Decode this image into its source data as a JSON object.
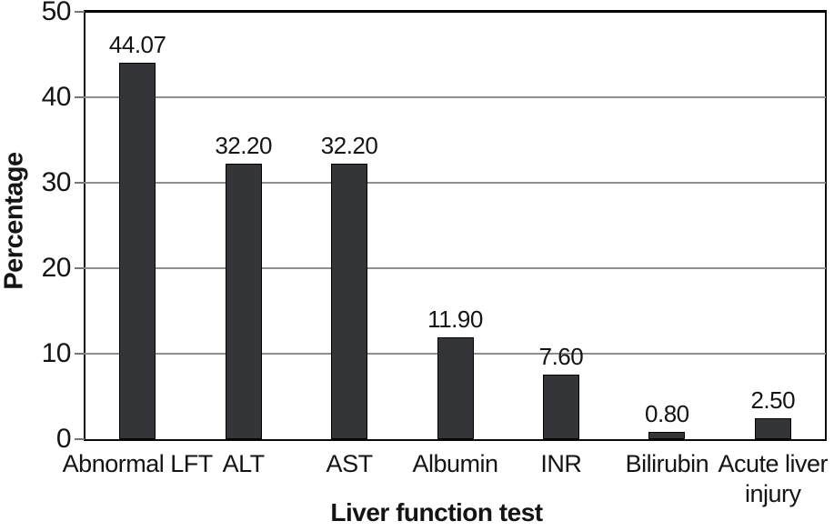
{
  "chart_data": {
    "type": "bar",
    "title": "",
    "categories": [
      "Abnormal LFT",
      "ALT",
      "AST",
      "Albumin",
      "INR",
      "Bilirubin",
      "Acute liver injury"
    ],
    "values": [
      44.07,
      32.2,
      32.2,
      11.9,
      7.6,
      0.8,
      2.5
    ],
    "value_labels": [
      "44.07",
      "32.20",
      "32.20",
      "11.90",
      "7.60",
      "0.80",
      "2.50"
    ],
    "xlabel": "Liver function test",
    "ylabel": "Percentage",
    "ylim": [
      0,
      50
    ],
    "yticks": [
      0,
      10,
      20,
      30,
      40,
      50
    ],
    "grid": true,
    "legend": false,
    "bar_color": "#333538",
    "bar_border_color": "#000000",
    "gridline_color": "#8f8f8f",
    "axis_color": "#0a0a0a",
    "text_color": "#141414"
  }
}
